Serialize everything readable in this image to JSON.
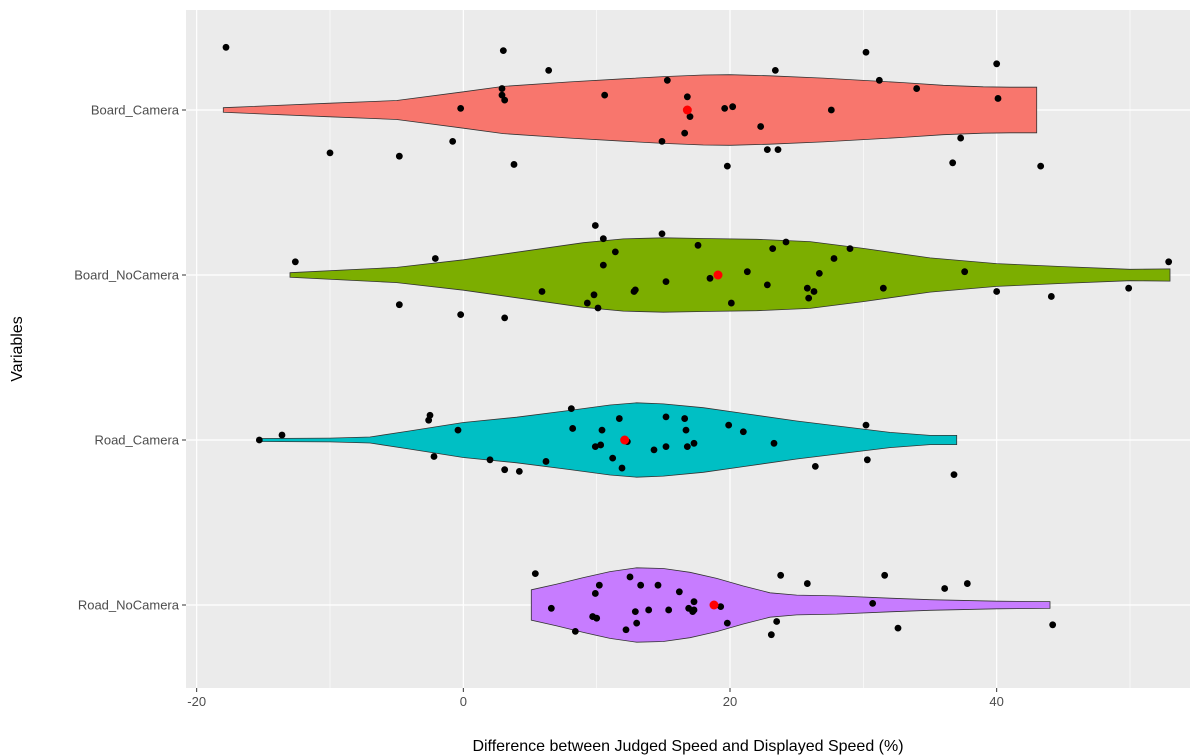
{
  "chart_data": {
    "type": "violin",
    "title": "",
    "xlabel": "Difference between Judged Speed and Displayed Speed (%)",
    "ylabel": "Variables",
    "xlim": [
      -20.8,
      54.5
    ],
    "x_ticks": [
      -20,
      0,
      20,
      40
    ],
    "x_tick_labels": [
      "-20",
      "0",
      "20",
      "40"
    ],
    "grid": true,
    "legend": "none",
    "mean_color": "#ff0000",
    "point_color": "#000000",
    "categories": [
      "Board_Camera",
      "Board_NoCamera",
      "Road_Camera",
      "Road_NoCamera"
    ],
    "series": [
      {
        "name": "Board_Camera",
        "color": "#f8766d",
        "range": [
          -18,
          43
        ],
        "mean": 16.8,
        "density": [
          [
            -18,
            0.06
          ],
          [
            -10,
            0.18
          ],
          [
            -5,
            0.25
          ],
          [
            0,
            0.48
          ],
          [
            3,
            0.62
          ],
          [
            8,
            0.74
          ],
          [
            12,
            0.82
          ],
          [
            15,
            0.88
          ],
          [
            18,
            0.92
          ],
          [
            20,
            0.93
          ],
          [
            23,
            0.9
          ],
          [
            27,
            0.84
          ],
          [
            30,
            0.78
          ],
          [
            33,
            0.72
          ],
          [
            36,
            0.65
          ],
          [
            39,
            0.61
          ],
          [
            41,
            0.6
          ],
          [
            43,
            0.6
          ]
        ],
        "points": [
          [
            -17.8,
            -0.38
          ],
          [
            -10,
            0.26
          ],
          [
            -4.8,
            0.28
          ],
          [
            -0.8,
            0.19
          ],
          [
            -0.2,
            -0.01
          ],
          [
            2.9,
            -0.09
          ],
          [
            2.9,
            -0.13
          ],
          [
            3,
            -0.36
          ],
          [
            3.1,
            -0.06
          ],
          [
            3.8,
            0.33
          ],
          [
            6.4,
            -0.24
          ],
          [
            10.6,
            -0.09
          ],
          [
            14.9,
            0.19
          ],
          [
            15.3,
            -0.18
          ],
          [
            16.6,
            0.14
          ],
          [
            16.8,
            -0.08
          ],
          [
            17,
            0.04
          ],
          [
            19.6,
            -0.01
          ],
          [
            19.8,
            0.34
          ],
          [
            20.2,
            -0.02
          ],
          [
            22.3,
            0.1
          ],
          [
            22.8,
            0.24
          ],
          [
            23.4,
            -0.24
          ],
          [
            23.6,
            0.24
          ],
          [
            27.6,
            0
          ],
          [
            30.2,
            -0.35
          ],
          [
            31.2,
            -0.18
          ],
          [
            34,
            -0.13
          ],
          [
            36.7,
            0.32
          ],
          [
            37.3,
            0.17
          ],
          [
            40,
            -0.28
          ],
          [
            40.1,
            -0.07
          ],
          [
            43.3,
            0.34
          ]
        ]
      },
      {
        "name": "Board_NoCamera",
        "color": "#7cae00",
        "range": [
          -13,
          53
        ],
        "mean": 19.1,
        "density": [
          [
            -13,
            0.06
          ],
          [
            -5,
            0.2
          ],
          [
            0,
            0.4
          ],
          [
            5,
            0.65
          ],
          [
            9,
            0.85
          ],
          [
            12,
            0.95
          ],
          [
            15,
            0.98
          ],
          [
            18,
            0.96
          ],
          [
            22,
            0.94
          ],
          [
            26,
            0.88
          ],
          [
            30,
            0.7
          ],
          [
            35,
            0.45
          ],
          [
            40,
            0.3
          ],
          [
            45,
            0.22
          ],
          [
            50,
            0.15
          ],
          [
            53,
            0.16
          ]
        ],
        "points": [
          [
            -12.6,
            -0.08
          ],
          [
            -2.1,
            -0.1
          ],
          [
            -0.2,
            0.24
          ],
          [
            -4.8,
            0.18
          ],
          [
            3.1,
            0.26
          ],
          [
            5.9,
            0.1
          ],
          [
            9.3,
            0.17
          ],
          [
            9.8,
            0.12
          ],
          [
            10.1,
            0.2
          ],
          [
            9.9,
            -0.3
          ],
          [
            10.5,
            -0.22
          ],
          [
            11.4,
            -0.14
          ],
          [
            10.5,
            -0.06
          ],
          [
            12.8,
            0.1
          ],
          [
            12.9,
            0.09
          ],
          [
            14.9,
            -0.25
          ],
          [
            15.2,
            0.04
          ],
          [
            17.6,
            -0.18
          ],
          [
            18.5,
            0.02
          ],
          [
            20.1,
            0.17
          ],
          [
            21.3,
            -0.02
          ],
          [
            22.8,
            0.06
          ],
          [
            23.2,
            -0.16
          ],
          [
            24.2,
            -0.2
          ],
          [
            26.3,
            0.1
          ],
          [
            26.7,
            -0.01
          ],
          [
            27.8,
            -0.1
          ],
          [
            29,
            -0.16
          ],
          [
            25.8,
            0.08
          ],
          [
            25.9,
            0.14
          ],
          [
            31.5,
            0.08
          ],
          [
            37.6,
            -0.02
          ],
          [
            40,
            0.1
          ],
          [
            44.1,
            0.13
          ],
          [
            49.9,
            0.08
          ],
          [
            52.9,
            -0.08
          ]
        ]
      },
      {
        "name": "Road_Camera",
        "color": "#00bfc4",
        "range": [
          -15.3,
          37
        ],
        "mean": 12.1,
        "density": [
          [
            -15.3,
            0.04
          ],
          [
            -10,
            0.05
          ],
          [
            -7,
            0.08
          ],
          [
            -4,
            0.24
          ],
          [
            0,
            0.46
          ],
          [
            4,
            0.6
          ],
          [
            8,
            0.78
          ],
          [
            11,
            0.92
          ],
          [
            13,
            0.98
          ],
          [
            15,
            0.95
          ],
          [
            18,
            0.85
          ],
          [
            21,
            0.7
          ],
          [
            25,
            0.5
          ],
          [
            29,
            0.33
          ],
          [
            32,
            0.2
          ],
          [
            35,
            0.12
          ],
          [
            37,
            0.12
          ]
        ],
        "points": [
          [
            -15.3,
            0
          ],
          [
            -13.6,
            -0.03
          ],
          [
            -2.6,
            -0.12
          ],
          [
            -2.5,
            -0.15
          ],
          [
            -2.2,
            0.1
          ],
          [
            -0.4,
            -0.06
          ],
          [
            2,
            0.12
          ],
          [
            3.1,
            0.18
          ],
          [
            4.2,
            0.19
          ],
          [
            6.2,
            0.13
          ],
          [
            8.1,
            -0.19
          ],
          [
            8.2,
            -0.07
          ],
          [
            9.9,
            0.04
          ],
          [
            10.3,
            0.03
          ],
          [
            10.4,
            -0.06
          ],
          [
            11.2,
            0.11
          ],
          [
            11.7,
            -0.13
          ],
          [
            11.9,
            0.17
          ],
          [
            12.3,
            0.01
          ],
          [
            14.3,
            0.06
          ],
          [
            15.2,
            0.04
          ],
          [
            15.2,
            -0.14
          ],
          [
            16.6,
            -0.13
          ],
          [
            16.7,
            -0.06
          ],
          [
            16.8,
            0.04
          ],
          [
            17.3,
            0.02
          ],
          [
            19.9,
            -0.09
          ],
          [
            21,
            -0.05
          ],
          [
            23.3,
            0.02
          ],
          [
            26.4,
            0.16
          ],
          [
            30.3,
            0.12
          ],
          [
            30.2,
            -0.09
          ],
          [
            36.8,
            0.21
          ]
        ]
      },
      {
        "name": "Road_NoCamera",
        "color": "#c77cff",
        "range": [
          5.1,
          44
        ],
        "mean": 18.8,
        "density": [
          [
            5.1,
            0.4
          ],
          [
            7,
            0.55
          ],
          [
            9,
            0.72
          ],
          [
            11,
            0.88
          ],
          [
            13,
            0.98
          ],
          [
            15,
            0.96
          ],
          [
            17,
            0.86
          ],
          [
            19,
            0.7
          ],
          [
            21,
            0.5
          ],
          [
            23,
            0.32
          ],
          [
            25,
            0.26
          ],
          [
            28,
            0.24
          ],
          [
            32,
            0.18
          ],
          [
            35,
            0.14
          ],
          [
            40,
            0.1
          ],
          [
            44,
            0.09
          ]
        ],
        "points": [
          [
            5.4,
            -0.19
          ],
          [
            6.6,
            0.02
          ],
          [
            8.4,
            0.16
          ],
          [
            9.7,
            0.07
          ],
          [
            9.9,
            -0.07
          ],
          [
            10.2,
            -0.12
          ],
          [
            10,
            0.08
          ],
          [
            12.2,
            0.15
          ],
          [
            12.5,
            -0.17
          ],
          [
            12.9,
            0.04
          ],
          [
            13,
            0.11
          ],
          [
            13.3,
            -0.12
          ],
          [
            13.9,
            0.03
          ],
          [
            14.6,
            -0.12
          ],
          [
            15.4,
            0.03
          ],
          [
            16.2,
            -0.08
          ],
          [
            16.9,
            0.02
          ],
          [
            17.2,
            0.04
          ],
          [
            17.3,
            0.03
          ],
          [
            17.3,
            -0.02
          ],
          [
            19.8,
            0.11
          ],
          [
            19.3,
            0.01
          ],
          [
            23.1,
            0.18
          ],
          [
            23.5,
            0.1
          ],
          [
            23.8,
            -0.18
          ],
          [
            25.8,
            -0.13
          ],
          [
            31.6,
            -0.18
          ],
          [
            32.6,
            0.14
          ],
          [
            30.7,
            -0.01
          ],
          [
            36.1,
            -0.1
          ],
          [
            37.8,
            -0.13
          ],
          [
            44.2,
            0.12
          ]
        ]
      }
    ]
  }
}
